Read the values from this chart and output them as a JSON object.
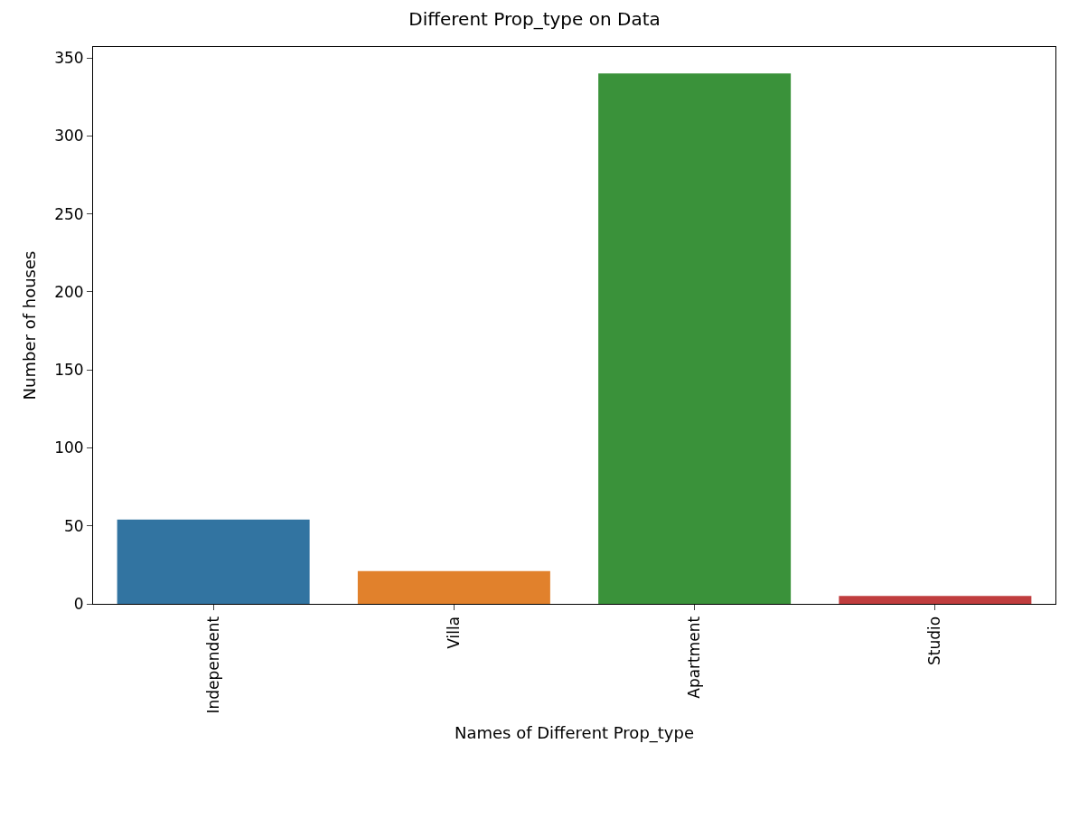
{
  "chart_data": {
    "type": "bar",
    "title": "Different Prop_type on Data",
    "xlabel": "Names of Different Prop_type",
    "ylabel": "Number of houses",
    "categories": [
      "Independent",
      "Villa",
      "Apartment",
      "Studio"
    ],
    "values": [
      54,
      21,
      340,
      5
    ],
    "colors": [
      "#3274a1",
      "#e1812c",
      "#3a923a",
      "#c03d3e"
    ],
    "ylim": [
      0,
      357
    ],
    "yticks": [
      0,
      50,
      100,
      150,
      200,
      250,
      300,
      350
    ]
  }
}
